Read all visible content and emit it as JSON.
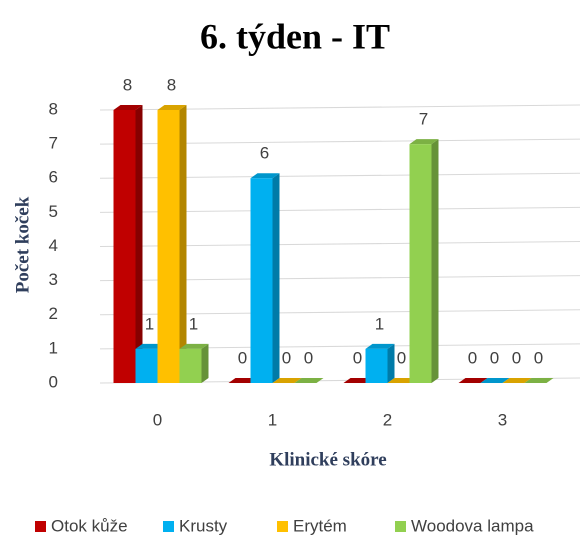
{
  "chart_data": {
    "type": "bar",
    "title": "6. týden - IT",
    "y_label": "Počet koček",
    "x_label": "Klinické skóre",
    "categories": [
      "0",
      "1",
      "2",
      "3"
    ],
    "series": [
      {
        "name": "Otok kůže",
        "color": "#c00000",
        "values": [
          8,
          0,
          0,
          0
        ]
      },
      {
        "name": "Krusty",
        "color": "#00b0f0",
        "values": [
          1,
          6,
          1,
          0
        ]
      },
      {
        "name": "Erytém",
        "color": "#ffc000",
        "values": [
          8,
          0,
          0,
          0
        ]
      },
      {
        "name": "Woodova lampa",
        "color": "#92d050",
        "values": [
          1,
          0,
          7,
          0
        ]
      }
    ],
    "ylim": [
      0,
      8
    ],
    "yticks": [
      0,
      1,
      2,
      3,
      4,
      5,
      6,
      7,
      8
    ],
    "grid": true,
    "legend": "bottom",
    "data_labels": true
  }
}
